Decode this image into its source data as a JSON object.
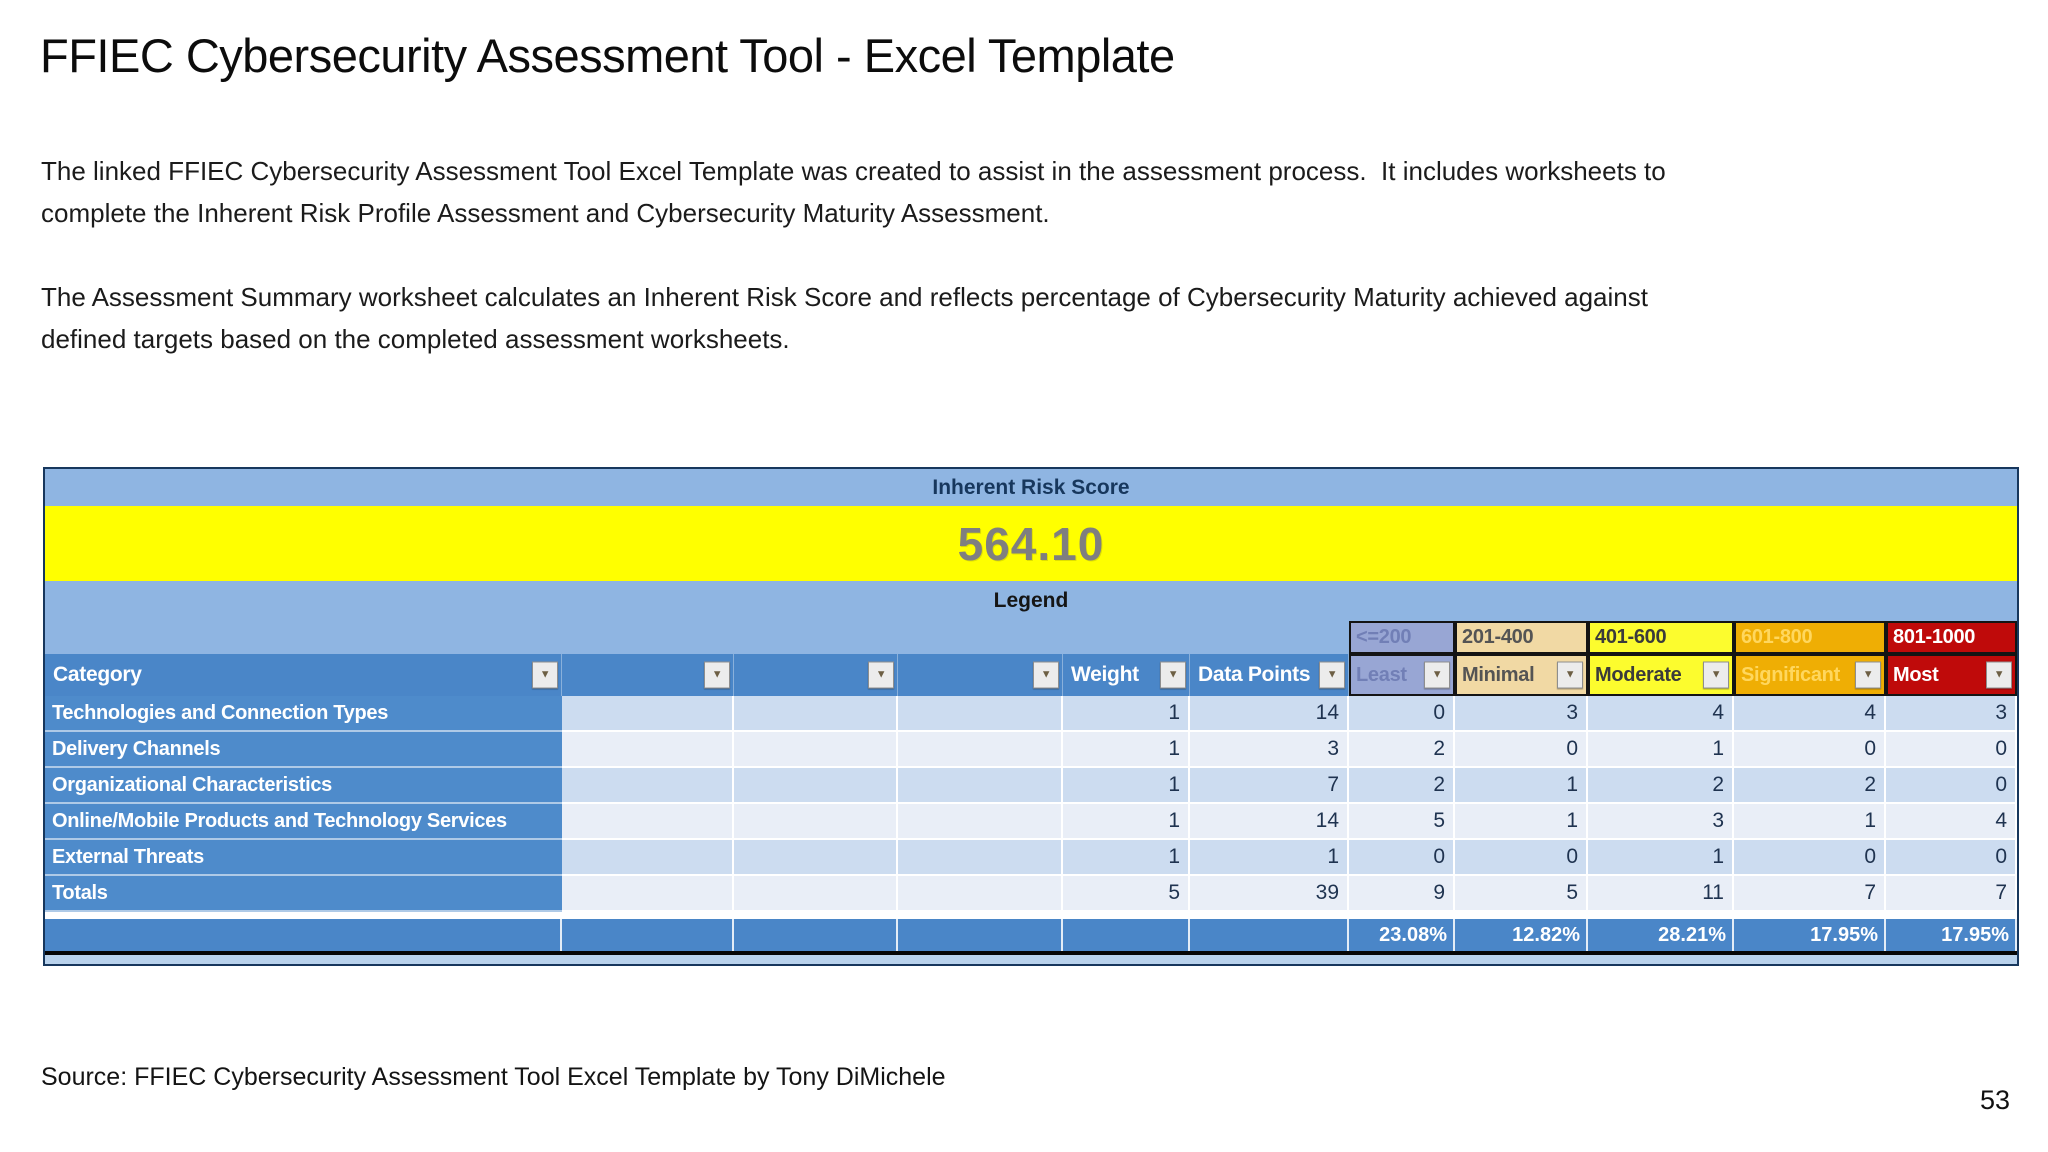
{
  "slide": {
    "title": "FFIEC Cybersecurity Assessment Tool - Excel Template",
    "paragraphs": [
      [
        "The linked FFIEC Cybersecurity Assessment Tool Excel Template was created to assist in the assessment process.  It includes worksheets to",
        "complete the Inherent Risk Profile Assessment and Cybersecurity Maturity Assessment."
      ],
      [
        "The Assessment Summary worksheet calculates an Inherent Risk Score and reflects percentage of Cybersecurity Maturity achieved against",
        "defined targets based on the completed assessment worksheets."
      ]
    ],
    "source_line": "Source: FFIEC Cybersecurity Assessment Tool Excel Template by Tony DiMichele",
    "page_number": "53"
  },
  "sheet": {
    "score_header": "Inherent Risk Score",
    "score_value": "564.10",
    "legend_label": "Legend",
    "column_headers": {
      "category": "Category",
      "weight": "Weight",
      "data_points": "Data Points"
    },
    "risk_levels": [
      {
        "range": "<=200",
        "label": "Least",
        "color": "#98a6d4"
      },
      {
        "range": "201-400",
        "label": "Minimal",
        "color": "#f1d9a4"
      },
      {
        "range": "401-600",
        "label": "Moderate",
        "color": "#fcfc2e"
      },
      {
        "range": "601-800",
        "label": "Significant",
        "color": "#efae04"
      },
      {
        "range": "801-1000",
        "label": "Most",
        "color": "#bf0a0a"
      }
    ],
    "rows": [
      {
        "category": "Technologies and Connection Types",
        "values": [
          "1",
          "14",
          "0",
          "3",
          "4",
          "4",
          "3"
        ]
      },
      {
        "category": "Delivery Channels",
        "values": [
          "1",
          "3",
          "2",
          "0",
          "1",
          "0",
          "0"
        ]
      },
      {
        "category": "Organizational Characteristics",
        "values": [
          "1",
          "7",
          "2",
          "1",
          "2",
          "2",
          "0"
        ]
      },
      {
        "category": "Online/Mobile Products and Technology Services",
        "values": [
          "1",
          "14",
          "5",
          "1",
          "3",
          "1",
          "4"
        ]
      },
      {
        "category": "External Threats",
        "values": [
          "1",
          "1",
          "0",
          "0",
          "1",
          "0",
          "0"
        ]
      },
      {
        "category": "Totals",
        "values": [
          "5",
          "39",
          "9",
          "5",
          "11",
          "7",
          "7"
        ]
      }
    ],
    "percentages": [
      "23.08%",
      "12.82%",
      "28.21%",
      "17.95%",
      "17.95%"
    ],
    "colors": {
      "score_bg": "#ffff00",
      "band_bg": "#8fb5e2",
      "header_bg": "#4a86c8",
      "row_band_dark": "#ccdcf0",
      "row_band_light": "#e9eef7"
    }
  }
}
